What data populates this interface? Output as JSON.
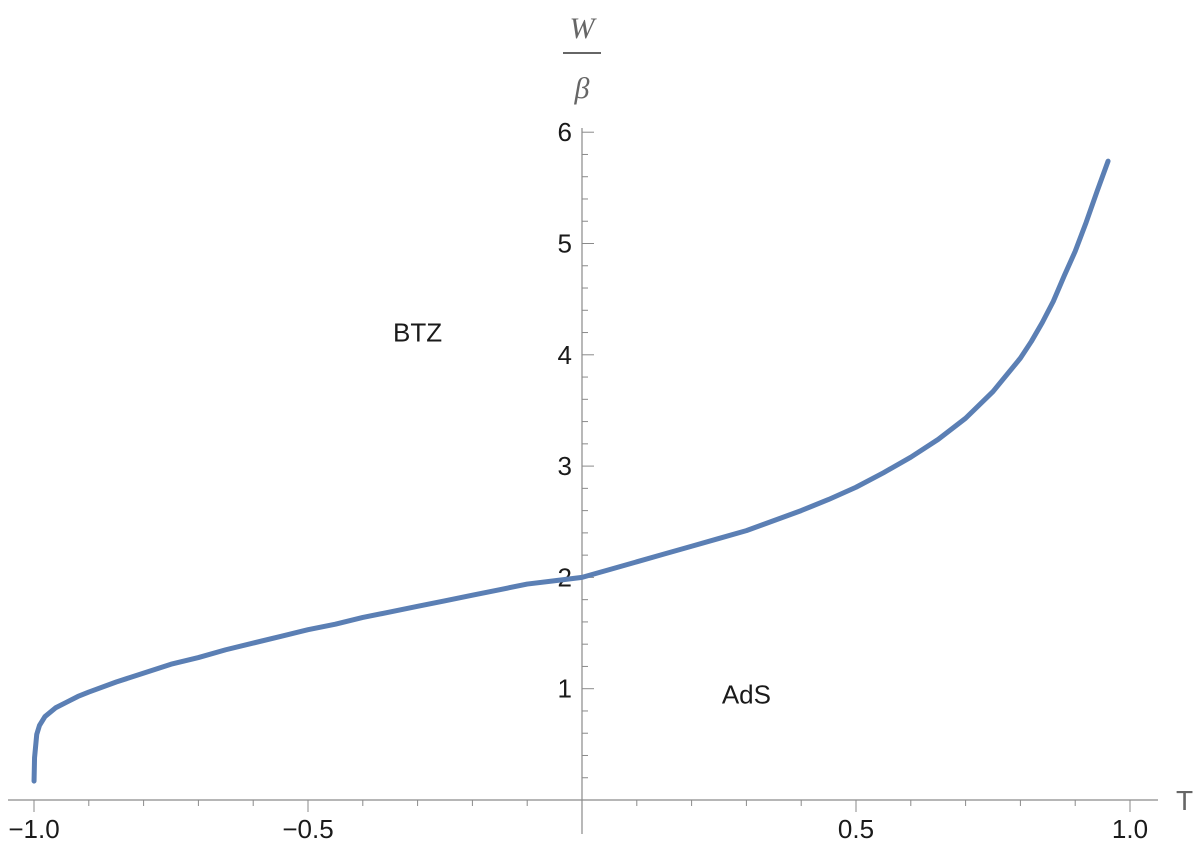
{
  "chart_data": {
    "type": "line",
    "title": "",
    "xlabel": "T",
    "ylabel": {
      "numerator": "W",
      "denominator": "β"
    },
    "xlim": [
      -1.0,
      1.0
    ],
    "ylim": [
      0,
      6
    ],
    "grid": false,
    "x_ticks": [
      -1.0,
      -0.5,
      0.5,
      1.0
    ],
    "x_tick_labels": [
      "−1.0",
      "−0.5",
      "0.5",
      "1.0"
    ],
    "y_ticks": [
      1,
      2,
      3,
      4,
      5,
      6
    ],
    "y_tick_labels": [
      "1",
      "2",
      "3",
      "4",
      "5",
      "6"
    ],
    "series": [
      {
        "color": "#5b7fb4",
        "x": [
          -0.9999,
          -0.999,
          -0.995,
          -0.99,
          -0.98,
          -0.96,
          -0.94,
          -0.92,
          -0.9,
          -0.85,
          -0.8,
          -0.75,
          -0.7,
          -0.65,
          -0.6,
          -0.55,
          -0.5,
          -0.45,
          -0.4,
          -0.35,
          -0.3,
          -0.25,
          -0.2,
          -0.15,
          -0.1,
          -0.05,
          0.0,
          0.05,
          0.1,
          0.15,
          0.2,
          0.25,
          0.3,
          0.35,
          0.4,
          0.45,
          0.5,
          0.55,
          0.6,
          0.65,
          0.7,
          0.75,
          0.8,
          0.82,
          0.84,
          0.86,
          0.88,
          0.9,
          0.92,
          0.94,
          0.96
        ],
        "y": [
          0.17,
          0.38,
          0.59,
          0.67,
          0.75,
          0.83,
          0.88,
          0.93,
          0.97,
          1.06,
          1.14,
          1.22,
          1.28,
          1.35,
          1.41,
          1.47,
          1.53,
          1.58,
          1.64,
          1.69,
          1.74,
          1.79,
          1.84,
          1.89,
          1.94,
          1.97,
          2.0,
          2.07,
          2.14,
          2.21,
          2.28,
          2.35,
          2.42,
          2.51,
          2.6,
          2.7,
          2.81,
          2.94,
          3.08,
          3.24,
          3.43,
          3.67,
          3.97,
          4.12,
          4.29,
          4.48,
          4.71,
          4.93,
          5.19,
          5.47,
          5.74
        ]
      }
    ],
    "annotations": [
      {
        "text": "BTZ",
        "x": -0.3,
        "y": 4.2
      },
      {
        "text": "AdS",
        "x": 0.3,
        "y": 0.95
      }
    ]
  }
}
